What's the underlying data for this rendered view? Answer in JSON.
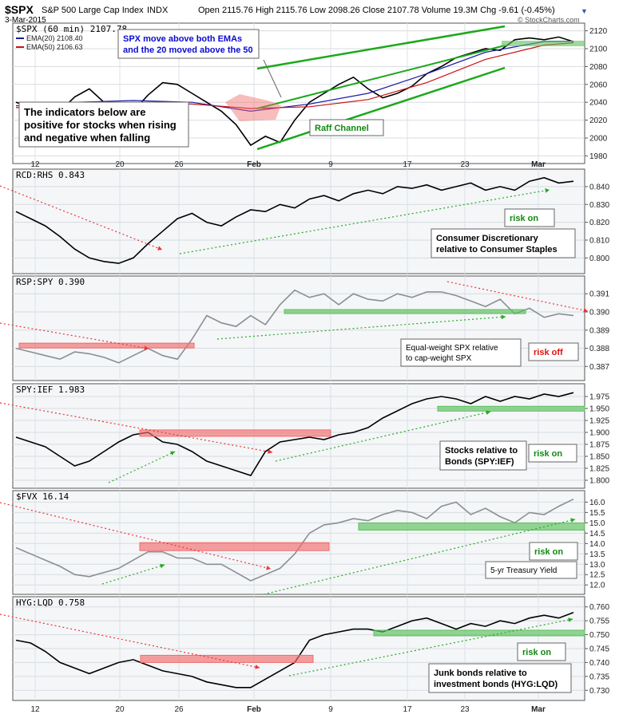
{
  "header": {
    "symbol": "$SPX",
    "name": "S&P 500 Large Cap Index",
    "exchange": "INDX",
    "date": "3-Mar-2015",
    "ohlc": "Open 2115.76  High 2115.76  Low 2098.26  Close 2107.78  Volume 19.3M  Chg -9.61 (-0.45%)",
    "watermark": "© StockCharts.com"
  },
  "x_axis": {
    "labels": [
      "12",
      "20",
      "26",
      "Feb",
      "9",
      "17",
      "23",
      "Mar"
    ]
  },
  "annotations": {
    "spx_ema_note": [
      "SPX move above both EMAs",
      "and the 20 moved above the 50"
    ],
    "indicators_note": [
      "The indicators below are",
      "positive for stocks when rising",
      "and negative when falling"
    ],
    "raff": "Raff Channel",
    "rcd_note": [
      "Consumer Discretionary",
      "relative to Consumer Staples"
    ],
    "rcd_signal": "risk on",
    "rsp_note": [
      "Equal-weight SPX relative",
      "to cap-weight SPX"
    ],
    "rsp_signal": "risk off",
    "spy_note": [
      "Stocks relative to",
      "Bonds (SPY:IEF)"
    ],
    "spy_signal": "risk on",
    "fvx_note": "5-yr Treasury Yield",
    "fvx_signal": "risk on",
    "hyg_note": [
      "Junk bonds relative to",
      "investment bonds (HYG:LQD)"
    ],
    "hyg_signal": "risk on"
  },
  "colors": {
    "price": "#000000",
    "ema20": "#1a1aa8",
    "ema50": "#cc1111",
    "channel": "#1aa81a",
    "resistance": "#f26b6b",
    "support": "#5cc05c",
    "ratio_gray": "#8a8f94",
    "note_blue": "#0b0bd0",
    "signal_green": "#118811",
    "signal_red": "#dd1111"
  },
  "chart_data": [
    {
      "type": "line",
      "label": "$SPX (60 min) 2107.78",
      "legend": [
        "EMA(20) 2108.40",
        "EMA(50) 2106.63"
      ],
      "ylim": [
        1975,
        2125
      ],
      "yticks": [
        1980,
        2000,
        2020,
        2040,
        2060,
        2080,
        2100,
        2120
      ],
      "series": [
        {
          "name": "$SPX (60 min)",
          "x": [
            0,
            1,
            2,
            3,
            4,
            5,
            6,
            7,
            8,
            9,
            10,
            11,
            12,
            13,
            14,
            15,
            16,
            17,
            18,
            19,
            20,
            21,
            22,
            23,
            24,
            25,
            26,
            27,
            28,
            29,
            30,
            31,
            32,
            33,
            34,
            35,
            36,
            37,
            38
          ],
          "values": [
            2040,
            2035,
            2028,
            2030,
            2046,
            2055,
            2040,
            2018,
            2030,
            2048,
            2062,
            2060,
            2050,
            2040,
            2030,
            2015,
            1992,
            2002,
            1995,
            2020,
            2040,
            2050,
            2060,
            2068,
            2055,
            2045,
            2050,
            2058,
            2072,
            2080,
            2090,
            2095,
            2100,
            2098,
            2110,
            2112,
            2110,
            2113,
            2107.78
          ]
        },
        {
          "name": "EMA(20)",
          "x": [
            0,
            4,
            8,
            12,
            16,
            20,
            24,
            28,
            32,
            36,
            38
          ],
          "values": [
            2036,
            2040,
            2042,
            2040,
            2030,
            2038,
            2050,
            2072,
            2096,
            2108,
            2108.4
          ]
        },
        {
          "name": "EMA(50)",
          "x": [
            0,
            4,
            8,
            12,
            16,
            20,
            24,
            28,
            32,
            36,
            38
          ],
          "values": [
            2034,
            2036,
            2038,
            2038,
            2033,
            2035,
            2043,
            2062,
            2088,
            2104,
            2106.63
          ]
        }
      ]
    },
    {
      "type": "line",
      "label": "RCD:RHS 0.843",
      "ylim": [
        0.793,
        0.848
      ],
      "yticks": [
        0.8,
        0.81,
        0.82,
        0.83,
        0.84
      ],
      "series": [
        {
          "name": "RCD:RHS",
          "x": [
            0,
            1,
            2,
            3,
            4,
            5,
            6,
            7,
            8,
            9,
            10,
            11,
            12,
            13,
            14,
            15,
            16,
            17,
            18,
            19,
            20,
            21,
            22,
            23,
            24,
            25,
            26,
            27,
            28,
            29,
            30,
            31,
            32,
            33,
            34,
            35,
            36,
            37,
            38
          ],
          "values": [
            0.826,
            0.822,
            0.818,
            0.812,
            0.805,
            0.8,
            0.798,
            0.797,
            0.8,
            0.808,
            0.815,
            0.822,
            0.825,
            0.82,
            0.818,
            0.823,
            0.827,
            0.826,
            0.83,
            0.828,
            0.833,
            0.835,
            0.832,
            0.836,
            0.838,
            0.836,
            0.84,
            0.839,
            0.841,
            0.838,
            0.84,
            0.842,
            0.838,
            0.84,
            0.838,
            0.843,
            0.845,
            0.842,
            0.843
          ]
        }
      ]
    },
    {
      "type": "line",
      "label": "RSP:SPY 0.390",
      "ylim": [
        0.3864,
        0.3918
      ],
      "yticks": [
        0.387,
        0.388,
        0.389,
        0.39,
        0.391
      ],
      "series": [
        {
          "name": "RSP:SPY",
          "x": [
            0,
            1,
            2,
            3,
            4,
            5,
            6,
            7,
            8,
            9,
            10,
            11,
            12,
            13,
            14,
            15,
            16,
            17,
            18,
            19,
            20,
            21,
            22,
            23,
            24,
            25,
            26,
            27,
            28,
            29,
            30,
            31,
            32,
            33,
            34,
            35,
            36,
            37,
            38
          ],
          "values": [
            0.388,
            0.3878,
            0.3876,
            0.3874,
            0.3878,
            0.3877,
            0.3875,
            0.3872,
            0.3876,
            0.388,
            0.3876,
            0.3874,
            0.3885,
            0.3898,
            0.3894,
            0.3892,
            0.3898,
            0.3893,
            0.3904,
            0.3912,
            0.3908,
            0.391,
            0.3904,
            0.391,
            0.3907,
            0.3906,
            0.391,
            0.3908,
            0.3911,
            0.3911,
            0.3909,
            0.3906,
            0.3903,
            0.3907,
            0.3899,
            0.3902,
            0.3897,
            0.3899,
            0.3898
          ]
        }
      ]
    },
    {
      "type": "line",
      "label": "SPY:IEF 1.983",
      "ylim": [
        1.79,
        1.995
      ],
      "yticks": [
        1.8,
        1.825,
        1.85,
        1.875,
        1.9,
        1.925,
        1.95,
        1.975
      ],
      "series": [
        {
          "name": "SPY:IEF",
          "x": [
            0,
            1,
            2,
            3,
            4,
            5,
            6,
            7,
            8,
            9,
            10,
            11,
            12,
            13,
            14,
            15,
            16,
            17,
            18,
            19,
            20,
            21,
            22,
            23,
            24,
            25,
            26,
            27,
            28,
            29,
            30,
            31,
            32,
            33,
            34,
            35,
            36,
            37,
            38
          ],
          "values": [
            1.89,
            1.88,
            1.87,
            1.85,
            1.83,
            1.84,
            1.86,
            1.88,
            1.895,
            1.9,
            1.88,
            1.875,
            1.86,
            1.84,
            1.83,
            1.82,
            1.81,
            1.86,
            1.88,
            1.885,
            1.89,
            1.885,
            1.895,
            1.9,
            1.91,
            1.93,
            1.945,
            1.96,
            1.97,
            1.975,
            1.97,
            1.96,
            1.975,
            1.965,
            1.975,
            1.97,
            1.98,
            1.975,
            1.983
          ]
        }
      ]
    },
    {
      "type": "line",
      "label": "$FVX 16.14",
      "ylim": [
        11.7,
        16.4
      ],
      "yticks": [
        12.0,
        12.5,
        13.0,
        13.5,
        14.0,
        14.5,
        15.0,
        15.5,
        16.0
      ],
      "series": [
        {
          "name": "$FVX",
          "x": [
            0,
            1,
            2,
            3,
            4,
            5,
            6,
            7,
            8,
            9,
            10,
            11,
            12,
            13,
            14,
            15,
            16,
            17,
            18,
            19,
            20,
            21,
            22,
            23,
            24,
            25,
            26,
            27,
            28,
            29,
            30,
            31,
            32,
            33,
            34,
            35,
            36,
            37,
            38
          ],
          "values": [
            13.8,
            13.5,
            13.2,
            12.9,
            12.5,
            12.4,
            12.6,
            12.8,
            13.2,
            13.6,
            13.6,
            13.3,
            13.3,
            13.0,
            13.0,
            12.6,
            12.2,
            12.5,
            12.8,
            13.5,
            14.5,
            14.9,
            15.0,
            15.2,
            15.1,
            15.4,
            15.6,
            15.5,
            15.2,
            15.8,
            16.0,
            15.4,
            15.7,
            15.3,
            15.0,
            15.5,
            15.4,
            15.8,
            16.14
          ]
        }
      ]
    },
    {
      "type": "line",
      "label": "HYG:LQD 0.758",
      "ylim": [
        0.7275,
        0.7625
      ],
      "yticks": [
        0.73,
        0.735,
        0.74,
        0.745,
        0.75,
        0.755,
        0.76
      ],
      "series": [
        {
          "name": "HYG:LQD",
          "x": [
            0,
            1,
            2,
            3,
            4,
            5,
            6,
            7,
            8,
            9,
            10,
            11,
            12,
            13,
            14,
            15,
            16,
            17,
            18,
            19,
            20,
            21,
            22,
            23,
            24,
            25,
            26,
            27,
            28,
            29,
            30,
            31,
            32,
            33,
            34,
            35,
            36,
            37,
            38
          ],
          "values": [
            0.748,
            0.747,
            0.744,
            0.74,
            0.738,
            0.736,
            0.738,
            0.74,
            0.741,
            0.739,
            0.737,
            0.736,
            0.735,
            0.733,
            0.732,
            0.731,
            0.731,
            0.734,
            0.737,
            0.74,
            0.748,
            0.75,
            0.751,
            0.752,
            0.752,
            0.751,
            0.753,
            0.755,
            0.756,
            0.754,
            0.752,
            0.754,
            0.753,
            0.755,
            0.754,
            0.756,
            0.757,
            0.756,
            0.758
          ]
        }
      ]
    }
  ]
}
